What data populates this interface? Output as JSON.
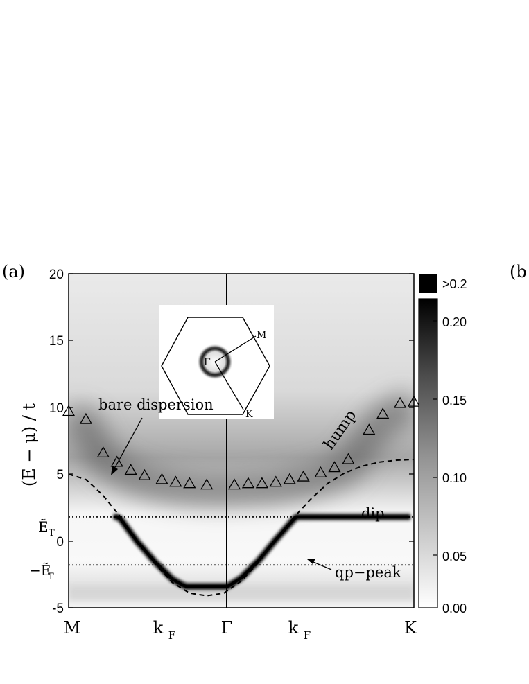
{
  "chart_data": {
    "type": "heatmap",
    "panel_labels": [
      "(a)",
      "(b"
    ],
    "ylabel": "(E − μ) / t",
    "ylim": [
      -5,
      20
    ],
    "y_ticks": [
      "20",
      "15",
      "10",
      "5",
      "0",
      "-5"
    ],
    "y_special_ticks": [
      "Ẽ",
      "T",
      "−Ẽ",
      "T"
    ],
    "x_ticks": [
      "M",
      "k",
      "F",
      "Γ",
      "k",
      "F",
      "K"
    ],
    "colorbar": {
      "labels": [
        "0.20",
        "0.15",
        "0.10",
        "0.05",
        "0.00"
      ],
      "range": [
        0.0,
        0.2
      ],
      "overflow_label": ">0.2"
    },
    "E_T": 1.8,
    "annotations": {
      "bare": "bare dispersion",
      "hump": "hump",
      "dip": "dip",
      "qp": "qp−peak"
    },
    "inset": {
      "labels": [
        "Γ",
        "M",
        "K"
      ]
    },
    "series": [
      {
        "marker": "triangle",
        "values": [
          {
            "x": 0.0,
            "y": 9.7
          },
          {
            "x": 0.05,
            "y": 9.1
          },
          {
            "x": 0.1,
            "y": 6.6
          },
          {
            "x": 0.14,
            "y": 5.9
          },
          {
            "x": 0.18,
            "y": 5.3
          },
          {
            "x": 0.22,
            "y": 4.9
          },
          {
            "x": 0.27,
            "y": 4.6
          },
          {
            "x": 0.31,
            "y": 4.4
          },
          {
            "x": 0.35,
            "y": 4.3
          },
          {
            "x": 0.4,
            "y": 4.2
          },
          {
            "x": 0.48,
            "y": 4.2
          },
          {
            "x": 0.52,
            "y": 4.3
          },
          {
            "x": 0.56,
            "y": 4.3
          },
          {
            "x": 0.6,
            "y": 4.4
          },
          {
            "x": 0.64,
            "y": 4.6
          },
          {
            "x": 0.68,
            "y": 4.8
          },
          {
            "x": 0.73,
            "y": 5.1
          },
          {
            "x": 0.77,
            "y": 5.5
          },
          {
            "x": 0.81,
            "y": 6.1
          },
          {
            "x": 0.87,
            "y": 8.3
          },
          {
            "x": 0.91,
            "y": 9.5
          },
          {
            "x": 0.96,
            "y": 10.3
          },
          {
            "x": 1.0,
            "y": 10.4
          }
        ]
      },
      {
        "line": "dashed",
        "values": [
          {
            "x": 0.0,
            "y": 5.0
          },
          {
            "x": 0.05,
            "y": 4.6
          },
          {
            "x": 0.1,
            "y": 3.4
          },
          {
            "x": 0.15,
            "y": 1.8
          },
          {
            "x": 0.2,
            "y": -0.1
          },
          {
            "x": 0.25,
            "y": -1.7
          },
          {
            "x": 0.3,
            "y": -3.1
          },
          {
            "x": 0.35,
            "y": -3.9
          },
          {
            "x": 0.4,
            "y": -4.1
          },
          {
            "x": 0.45,
            "y": -3.9
          },
          {
            "x": 0.5,
            "y": -3.0
          },
          {
            "x": 0.55,
            "y": -1.6
          },
          {
            "x": 0.6,
            "y": 0.1
          },
          {
            "x": 0.65,
            "y": 1.7
          },
          {
            "x": 0.7,
            "y": 3.1
          },
          {
            "x": 0.75,
            "y": 4.3
          },
          {
            "x": 0.8,
            "y": 5.1
          },
          {
            "x": 0.85,
            "y": 5.6
          },
          {
            "x": 0.9,
            "y": 5.9
          },
          {
            "x": 0.95,
            "y": 6.05
          },
          {
            "x": 1.0,
            "y": 6.1
          }
        ]
      }
    ]
  }
}
